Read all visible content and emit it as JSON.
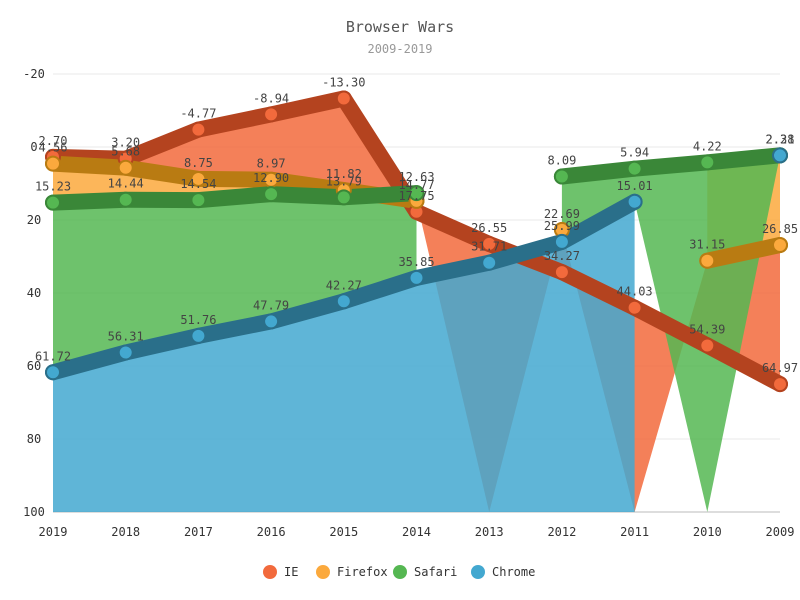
{
  "chart_data": {
    "type": "area",
    "title": "Browser Wars",
    "subtitle": "2009-2019",
    "categories": [
      "2019",
      "2018",
      "2017",
      "2016",
      "2015",
      "2014",
      "2013",
      "2012",
      "2011",
      "2010",
      "2009"
    ],
    "y_ticks": [
      -20,
      0,
      20,
      40,
      60,
      80,
      100
    ],
    "ylim": [
      -20,
      100
    ],
    "y_reversed": true,
    "stacked": true,
    "grid": true,
    "legend_position": "bottom",
    "series": [
      {
        "name": "IE",
        "color": "#f26a3c",
        "line_color": "#b4431f",
        "values": [
          2.7,
          3.2,
          -4.77,
          -8.94,
          -13.3,
          17.75,
          26.55,
          34.27,
          44.03,
          54.39,
          64.97
        ],
        "labels": [
          "2.70",
          "3.20",
          "-4.77",
          "-8.94",
          "-13.30",
          "17.75",
          "26.55",
          "34.27",
          "44.03",
          "54.39",
          "64.97"
        ]
      },
      {
        "name": "Firefox",
        "color": "#fba93d",
        "line_color": "#b97b12",
        "values": [
          4.56,
          5.68,
          8.75,
          8.97,
          11.82,
          14.77,
          null,
          22.69,
          null,
          31.15,
          26.85
        ],
        "labels": [
          "4.56",
          "5.68",
          "8.75",
          "8.97",
          "11.82",
          "14.77",
          "",
          "22.69",
          "",
          "31.15",
          "26.85"
        ]
      },
      {
        "name": "Safari",
        "color": "#55b752",
        "line_color": "#3a8738",
        "values": [
          15.23,
          14.44,
          14.54,
          12.9,
          13.79,
          12.63,
          null,
          8.09,
          5.94,
          4.22,
          2.28
        ],
        "labels": [
          "15.23",
          "14.44",
          "14.54",
          "12.90",
          "13.79",
          "12.63",
          "",
          "8.09",
          "5.94",
          "4.22",
          "2.28"
        ]
      },
      {
        "name": "Chrome",
        "color": "#43a8d0",
        "line_color": "#2a6f8a",
        "values": [
          61.72,
          56.31,
          51.76,
          47.79,
          42.27,
          35.85,
          31.71,
          25.99,
          15.01,
          null,
          2.31
        ],
        "labels": [
          "61.72",
          "56.31",
          "51.76",
          "47.79",
          "42.27",
          "35.85",
          "31.71",
          "25.99",
          "15.01",
          "",
          "2.31"
        ]
      }
    ]
  }
}
